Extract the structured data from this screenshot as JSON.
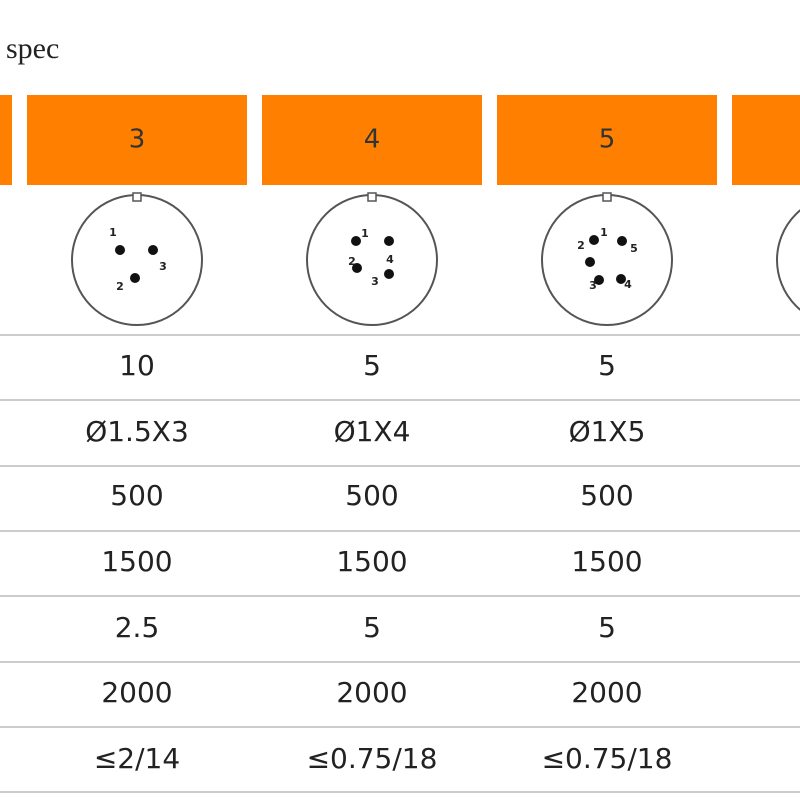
{
  "title": "spec",
  "table": {
    "columns": [
      {
        "header": "3",
        "pins": [
          "1",
          "3",
          "2"
        ],
        "rows": [
          "10",
          "Ø1.5X3",
          "500",
          "1500",
          "2.5",
          "2000",
          "≤2/14"
        ]
      },
      {
        "header": "4",
        "pins": [
          "1",
          "2",
          "4",
          "3"
        ],
        "rows": [
          "5",
          "Ø1X4",
          "500",
          "1500",
          "5",
          "2000",
          "≤0.75/18"
        ]
      },
      {
        "header": "5",
        "pins": [
          "1",
          "2",
          "5",
          "3",
          "4"
        ],
        "rows": [
          "5",
          "Ø1X5",
          "500",
          "1500",
          "5",
          "2000",
          "≤0.75/18"
        ]
      }
    ]
  }
}
